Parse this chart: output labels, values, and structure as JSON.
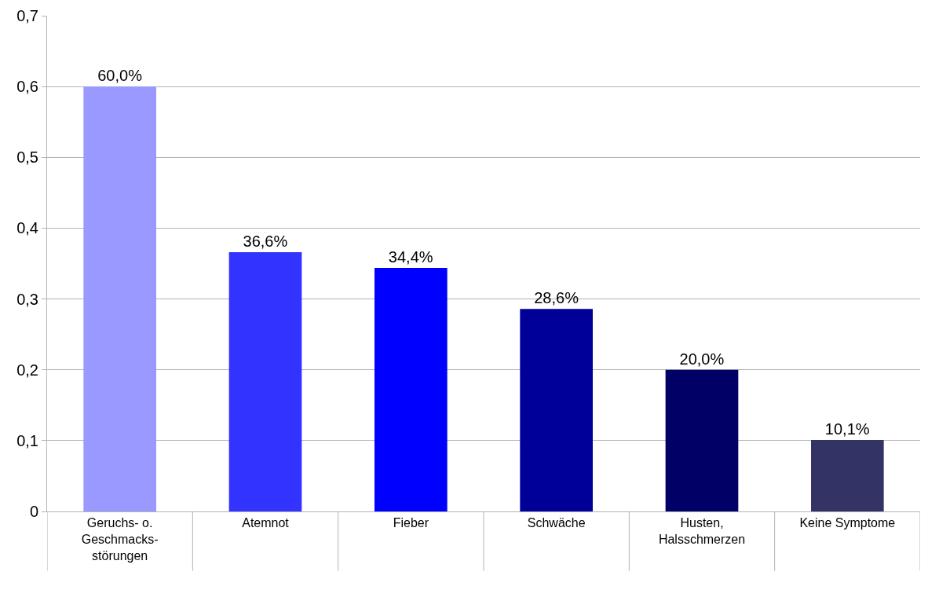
{
  "chart_data": {
    "type": "bar",
    "categories": [
      "Geruchs- o.\nGeschmacks-\nstörungen",
      "Atemnot",
      "Fieber",
      "Schwäche",
      "Husten,\nHalsschmerzen",
      "Keine Symptome"
    ],
    "values": [
      0.6,
      0.366,
      0.344,
      0.286,
      0.2,
      0.101
    ],
    "colors": [
      "#9999ff",
      "#3333ff",
      "#0000ff",
      "#000099",
      "#000066",
      "#333366"
    ],
    "value_labels": [
      "60,0%",
      "36,6%",
      "34,4%",
      "28,6%",
      "20,0%",
      "10,1%"
    ],
    "ylim": [
      0,
      0.7
    ],
    "yticks": [
      0,
      {
        "value": 0.1,
        "label": "0,1"
      },
      {
        "value": 0.2,
        "label": "0,2"
      },
      {
        "value": 0.3,
        "label": "0,3"
      },
      {
        "value": 0.4,
        "label": "0,4"
      },
      {
        "value": 0.5,
        "label": "0,5"
      },
      {
        "value": 0.6,
        "label": "0,6"
      },
      {
        "value": 0.7,
        "label": "0,7"
      }
    ],
    "grid": "y"
  }
}
